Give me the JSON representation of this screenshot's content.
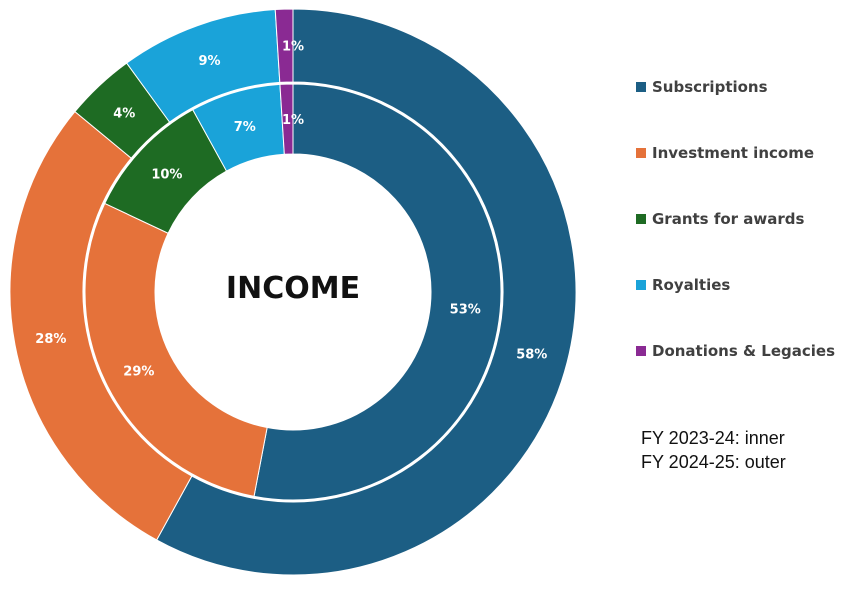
{
  "chart_data": {
    "type": "donut",
    "title": "INCOME",
    "categories": [
      "Subscriptions",
      "Investment income",
      "Grants for awards",
      "Royalties",
      "Donations & Legacies"
    ],
    "colors": [
      "#1c5e84",
      "#e5723a",
      "#1e6b23",
      "#1aa3d9",
      "#8a2a93"
    ],
    "series": [
      {
        "name": "FY 2023-24",
        "values": [
          53,
          29,
          10,
          7,
          1
        ],
        "labels": [
          "53%",
          "29%",
          "10%",
          "7%",
          "1%"
        ]
      },
      {
        "name": "FY 2024-25",
        "values": [
          58,
          28,
          4,
          9,
          1
        ],
        "labels": [
          "58%",
          "28%",
          "4%",
          "9%",
          "1%"
        ]
      }
    ],
    "legend_position": "right"
  },
  "notes": {
    "inner": "FY 2023-24: inner",
    "outer": "FY 2024-25: outer"
  }
}
